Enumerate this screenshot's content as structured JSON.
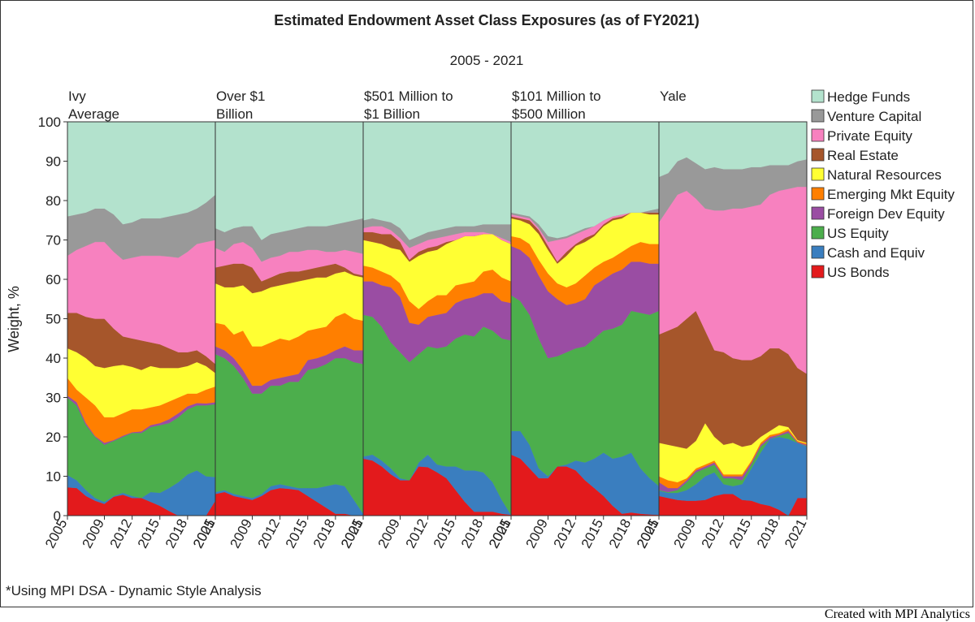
{
  "title": "Estimated Endowment Asset Class Exposures (as of FY2021)",
  "subtitle": "2005 - 2021",
  "footnote": "*Using MPI DSA - Dynamic Style Analysis",
  "credit": "Created with MPI Analytics",
  "chart_data": {
    "type": "area",
    "stacked": true,
    "ylabel": "Weight, %",
    "ylim": [
      0,
      100
    ],
    "yticks": [
      0,
      10,
      20,
      30,
      40,
      50,
      60,
      70,
      80,
      90,
      100
    ],
    "x": [
      2005,
      2006,
      2007,
      2008,
      2009,
      2010,
      2011,
      2012,
      2013,
      2014,
      2015,
      2016,
      2017,
      2018,
      2019,
      2020,
      2021
    ],
    "xticks": [
      2005,
      2009,
      2012,
      2015,
      2018,
      2021
    ],
    "legend_position": "right",
    "grid": false,
    "series_names": [
      "US Bonds",
      "Cash and Equiv",
      "US Equity",
      "Foreign Dev Equity",
      "Emerging Mkt Equity",
      "Natural Resources",
      "Real Estate",
      "Private Equity",
      "Venture Capital",
      "Hedge Funds"
    ],
    "colors": [
      "#e31a1c",
      "#3a7ebf",
      "#4cae4c",
      "#9a4da3",
      "#ff7f00",
      "#ffff33",
      "#a6562b",
      "#f781bf",
      "#999999",
      "#b3e2cd"
    ],
    "panels": [
      {
        "label": [
          "Ivy",
          "Average"
        ],
        "cum": [
          [
            7.2,
            7,
            5,
            3.8,
            3,
            4.8,
            5.3,
            4.5,
            4.5,
            3.5,
            2.5,
            1.2,
            0,
            0,
            0,
            0,
            3.8
          ],
          [
            10.3,
            9,
            6.5,
            4.5,
            3.5,
            5,
            5.8,
            5,
            4.5,
            6,
            5.8,
            7,
            8.5,
            10.5,
            11.5,
            10,
            9.8
          ],
          [
            30,
            28,
            23,
            20,
            18,
            19,
            20,
            21,
            21,
            22.5,
            23,
            23.5,
            25,
            27,
            28,
            28,
            28.3
          ],
          [
            30.5,
            28.8,
            23.5,
            20.2,
            18.5,
            19.2,
            20.3,
            21.2,
            21.4,
            23,
            23.5,
            24.5,
            26,
            27.8,
            28.6,
            28.5,
            28.8
          ],
          [
            35,
            32,
            30,
            28,
            25,
            25,
            26,
            27,
            27,
            27.5,
            28,
            29,
            30,
            31,
            31,
            32,
            32.8
          ],
          [
            42.5,
            41.5,
            40,
            38,
            37.5,
            38,
            38.3,
            37.8,
            37,
            38,
            37.5,
            37.5,
            37.5,
            38,
            39,
            38,
            36.2
          ],
          [
            51.5,
            51.5,
            50.5,
            50,
            50,
            47.5,
            45.5,
            45,
            44.5,
            44,
            43.5,
            42.5,
            41.5,
            41.5,
            42,
            40.5,
            38.5
          ],
          [
            66,
            67.5,
            68.5,
            69.5,
            69.5,
            67,
            65,
            65.5,
            66,
            66,
            66,
            65.8,
            65.5,
            67,
            69,
            69.5,
            70
          ],
          [
            76,
            76.5,
            77,
            78,
            78,
            76.5,
            74,
            74.5,
            75.5,
            75.5,
            75.5,
            76,
            76.5,
            77,
            78,
            79.5,
            81.5
          ],
          [
            100,
            100,
            100,
            100,
            100,
            100,
            100,
            100,
            100,
            100,
            100,
            100,
            100,
            100,
            100,
            100,
            100
          ]
        ]
      },
      {
        "label": [
          "Over $1",
          "Billion"
        ],
        "cum": [
          [
            5.5,
            6,
            5,
            4.5,
            4,
            5,
            6.5,
            7,
            6.8,
            6.5,
            5,
            3.5,
            2,
            0.5,
            0.5,
            0,
            0
          ],
          [
            6,
            6.5,
            5.5,
            5,
            4.5,
            5.5,
            7.5,
            8,
            7.5,
            7,
            7,
            7,
            7.5,
            8,
            7.5,
            4,
            0.5
          ],
          [
            41,
            40,
            38,
            35,
            31,
            31,
            33,
            33,
            34,
            34,
            37,
            37.5,
            38.5,
            40,
            40,
            39,
            38.5
          ],
          [
            43,
            42,
            40,
            37,
            33,
            33,
            34.5,
            35,
            35.5,
            36,
            39.5,
            40,
            40.8,
            42,
            43,
            42,
            42
          ],
          [
            49,
            48.5,
            46,
            47,
            43,
            43,
            44,
            45,
            44.5,
            45.5,
            47,
            47.5,
            48,
            50.5,
            51.5,
            50,
            49.5
          ],
          [
            59,
            58,
            58,
            58.5,
            56.5,
            57,
            58,
            58.5,
            59,
            59.5,
            60,
            60.5,
            60.5,
            61.5,
            62,
            61,
            60.5
          ],
          [
            63,
            63.5,
            64,
            64,
            63,
            59.5,
            60.5,
            61.5,
            62,
            62,
            62.5,
            63,
            63.5,
            64,
            63,
            61.5,
            61
          ],
          [
            68,
            67,
            69,
            69.5,
            68,
            64.5,
            65.5,
            66,
            67,
            67,
            67.5,
            67.5,
            67,
            67,
            67.5,
            67,
            66.5
          ],
          [
            73,
            72,
            73,
            73.5,
            73.5,
            70,
            71.5,
            72,
            72.5,
            73,
            73.5,
            73.5,
            73.5,
            74,
            74.5,
            75,
            75.5
          ],
          [
            100,
            100,
            100,
            100,
            100,
            100,
            100,
            100,
            100,
            100,
            100,
            100,
            100,
            100,
            100,
            100,
            100
          ]
        ]
      },
      {
        "label": [
          "$501 Million to",
          "$1 Billion"
        ],
        "cum": [
          [
            14.5,
            14,
            12.5,
            10.5,
            9,
            9,
            12.5,
            12.3,
            11,
            9.5,
            6.5,
            3.5,
            1,
            1,
            1,
            0.5,
            0.2
          ],
          [
            15,
            15.5,
            14,
            12,
            9.5,
            9,
            13.5,
            15.5,
            13,
            12.5,
            12.5,
            11.5,
            11.5,
            11,
            8.5,
            4,
            0.2
          ],
          [
            51,
            50.5,
            48,
            44,
            41.5,
            39,
            41,
            43,
            42.5,
            43,
            45,
            46,
            45.5,
            48,
            47,
            45,
            44.5
          ],
          [
            59.5,
            59.5,
            58.5,
            58,
            55.5,
            49,
            48.5,
            50.5,
            51,
            51.5,
            54,
            55,
            55.5,
            56.5,
            56.5,
            54.5,
            54
          ],
          [
            63.5,
            63,
            62,
            61,
            59,
            54.5,
            52.5,
            54.5,
            56,
            56,
            58.5,
            59,
            59.5,
            62,
            62.5,
            60.5,
            59.5
          ],
          [
            70,
            69.5,
            69,
            68,
            67.5,
            64.5,
            66,
            67,
            67.5,
            69,
            70,
            71,
            71,
            71.5,
            71.5,
            70,
            69
          ],
          [
            72,
            72,
            71.5,
            71.5,
            69.5,
            65,
            67,
            68,
            68.5,
            69.5,
            70,
            71,
            71,
            71.5,
            71.5,
            70,
            69
          ],
          [
            73,
            73.5,
            73.5,
            72.5,
            70.5,
            68,
            69,
            70,
            70.5,
            71,
            71.5,
            72,
            72,
            72,
            71.5,
            70.5,
            69.5
          ],
          [
            75,
            75.5,
            75,
            74.5,
            73,
            70,
            71,
            72,
            72.5,
            73,
            73.5,
            73.5,
            73.5,
            74,
            74,
            74,
            74
          ],
          [
            100,
            100,
            100,
            100,
            100,
            100,
            100,
            100,
            100,
            100,
            100,
            100,
            100,
            100,
            100,
            100,
            100
          ]
        ]
      },
      {
        "label": [
          "$101 Million to",
          "$500 Million"
        ],
        "cum": [
          [
            15.5,
            14.5,
            12,
            9.5,
            9.5,
            12.5,
            12.5,
            11.5,
            9,
            7,
            5,
            2.5,
            0.5,
            0.8,
            0.5,
            0.3,
            0.2
          ],
          [
            21.5,
            21.5,
            18,
            12,
            10,
            12.5,
            13,
            14,
            13.5,
            14.5,
            16,
            14.5,
            15,
            16,
            12,
            9.5,
            7.5
          ],
          [
            56,
            54.5,
            51,
            45,
            40,
            40.5,
            41.5,
            42.5,
            43,
            45,
            47,
            47.5,
            48.5,
            52,
            51.5,
            51,
            52
          ],
          [
            68.5,
            67.5,
            65.5,
            61,
            57,
            55,
            53.5,
            54,
            55,
            58.5,
            60,
            61.5,
            62.5,
            64.5,
            64.5,
            64,
            64
          ],
          [
            71,
            70.5,
            69,
            65,
            61.5,
            59,
            58,
            59,
            61,
            63,
            64.5,
            65.5,
            67,
            68.5,
            69.5,
            69,
            69
          ],
          [
            75.5,
            75,
            74,
            71.5,
            67.5,
            64,
            66,
            68.5,
            69.5,
            71,
            73.5,
            75,
            75.5,
            77,
            77,
            76.5,
            76.5
          ],
          [
            76,
            75.5,
            75,
            72.5,
            68.5,
            64.5,
            67,
            69,
            70.5,
            71.5,
            74,
            75.5,
            76,
            77,
            77,
            77,
            77
          ],
          [
            76.5,
            76,
            75.5,
            73,
            69.5,
            70,
            70.5,
            71.5,
            72.5,
            73.5,
            75,
            76,
            76.5,
            77,
            77,
            77,
            77
          ],
          [
            77,
            76.5,
            76,
            74,
            71,
            70.5,
            71,
            72,
            73,
            73.5,
            75,
            76,
            76.5,
            77,
            77,
            77.5,
            78
          ],
          [
            100,
            100,
            100,
            100,
            100,
            100,
            100,
            100,
            100,
            100,
            100,
            100,
            100,
            100,
            100,
            100,
            100
          ]
        ]
      },
      {
        "label": [
          "Yale"
        ],
        "cum": [
          [
            5,
            4.5,
            4,
            3.8,
            3.8,
            4,
            5,
            5.5,
            5.5,
            4,
            3.8,
            3,
            2.5,
            1.5,
            0,
            4.5,
            4.5
          ],
          [
            6.3,
            5.8,
            5.8,
            6.5,
            8,
            10,
            11,
            8,
            7.5,
            8,
            12,
            16,
            19.5,
            20,
            19.5,
            18.5,
            17.5
          ],
          [
            6.5,
            6,
            6.5,
            8.5,
            11,
            12,
            13,
            9.5,
            9.5,
            9,
            13,
            17.5,
            19.5,
            20.3,
            21,
            18.5,
            17.7
          ],
          [
            8.5,
            7,
            7,
            9,
            11.5,
            12.5,
            13.5,
            10,
            10,
            10,
            13.5,
            18,
            20,
            20.6,
            21.5,
            18.7,
            18
          ],
          [
            10,
            9,
            8.5,
            9.5,
            12,
            13,
            14,
            10.5,
            10.5,
            10.5,
            14,
            18.5,
            20.5,
            21,
            22,
            19,
            18.3
          ],
          [
            18.5,
            18,
            17.5,
            17,
            19,
            23.5,
            20,
            18,
            18.5,
            17.5,
            18,
            20,
            21.5,
            23,
            22.5,
            19.2,
            18.5
          ],
          [
            46,
            47,
            48,
            50,
            52,
            47,
            42,
            41.5,
            40,
            39.5,
            39.5,
            40.5,
            42.5,
            42.5,
            41,
            37.5,
            36
          ],
          [
            74.5,
            78,
            81.5,
            82.5,
            80.5,
            78,
            77.5,
            77.5,
            78,
            78,
            78.5,
            79,
            81.5,
            82.5,
            83,
            83.5,
            83.5
          ],
          [
            86,
            87,
            90,
            91,
            89.5,
            88,
            88.5,
            88,
            88,
            88,
            88.5,
            88.5,
            89,
            89,
            89,
            90,
            90.5
          ],
          [
            100,
            100,
            100,
            100,
            100,
            100,
            100,
            100,
            100,
            100,
            100,
            100,
            100,
            100,
            100,
            100,
            100
          ]
        ]
      }
    ]
  }
}
